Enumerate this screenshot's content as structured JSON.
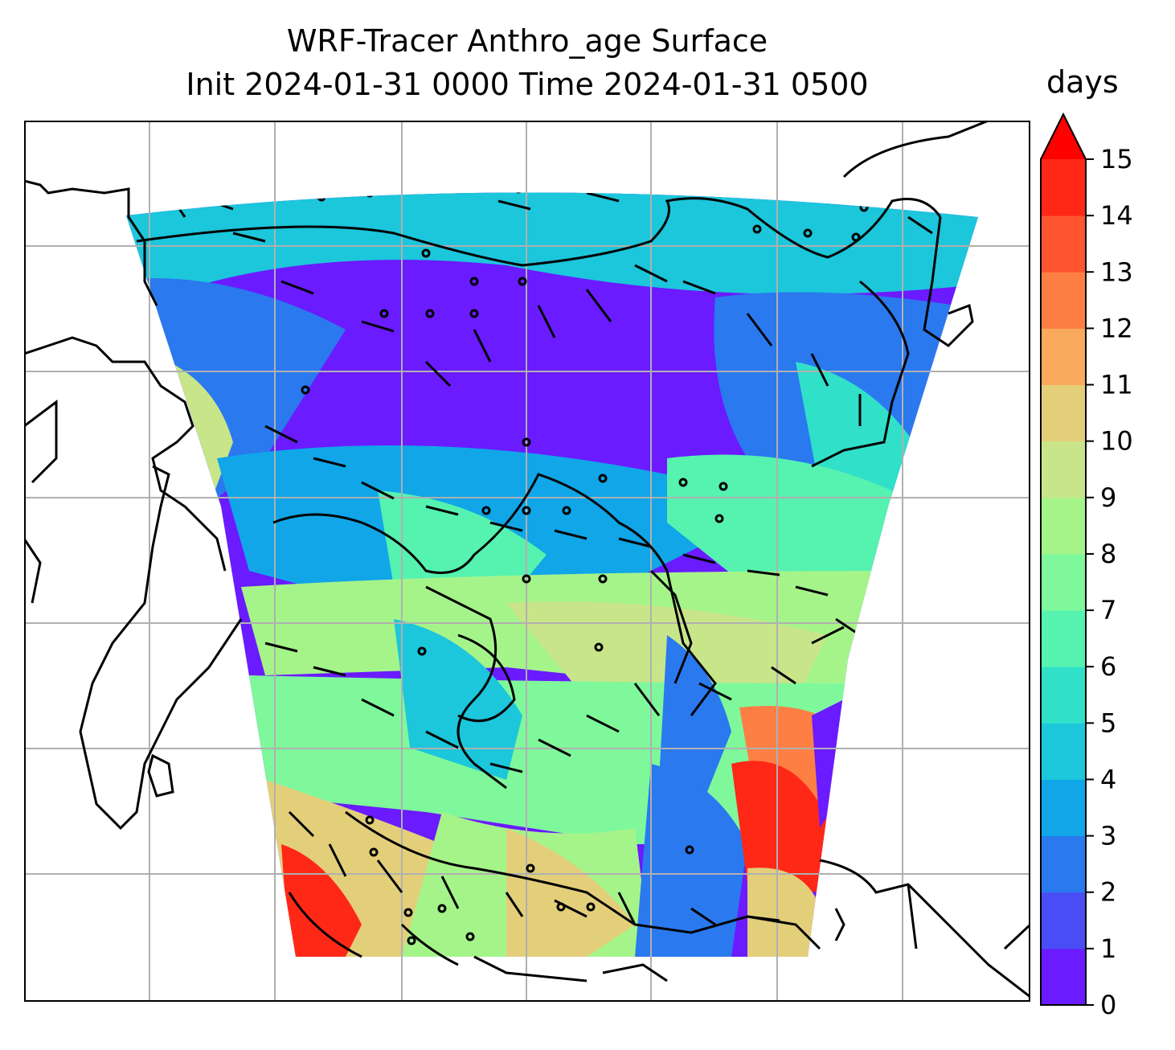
{
  "title": {
    "line1": "WRF-Tracer Anthro_age Surface",
    "line2": "Init 2024-01-31 0000 Time 2024-01-31 0500"
  },
  "colorbar": {
    "label": "days",
    "ticks": [
      "0",
      "1",
      "2",
      "3",
      "4",
      "5",
      "6",
      "7",
      "8",
      "9",
      "10",
      "11",
      "12",
      "13",
      "14",
      "15"
    ],
    "colors": [
      "#6a1bff",
      "#4a4df5",
      "#2a79ef",
      "#10a6e8",
      "#1cc6db",
      "#30e0c9",
      "#56f2b0",
      "#7ff89c",
      "#a5f48a",
      "#c8e58a",
      "#e3cf7a",
      "#f9aa5c",
      "#fd7f44",
      "#ff5430",
      "#ff2817"
    ],
    "extend_color": "#ff0000"
  },
  "colors": {
    "coastline": "#000000",
    "gridline": "#b0b0b0",
    "frame": "#000000"
  }
}
